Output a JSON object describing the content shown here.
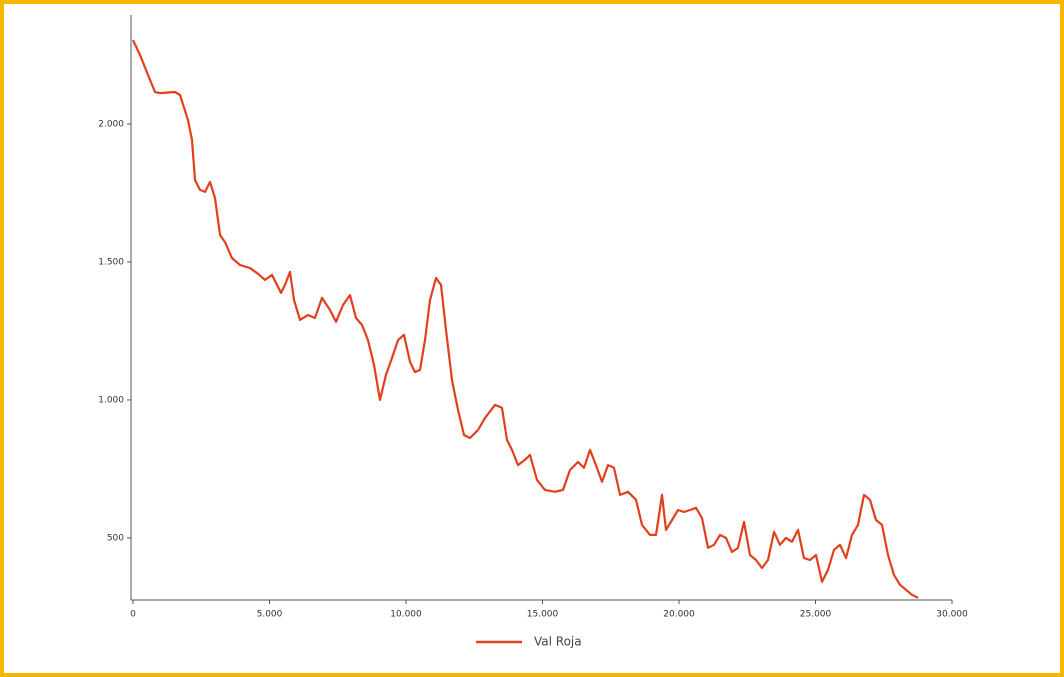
{
  "chart_data": {
    "type": "line",
    "x": [
      0,
      256,
      549,
      806,
      989,
      1538,
      1722,
      2015,
      2161,
      2271,
      2454,
      2637,
      2821,
      3004,
      3187,
      3370,
      3626,
      3919,
      4286,
      4579,
      4835,
      5092,
      5275,
      5421,
      5568,
      5751,
      5897,
      6117,
      6410,
      6667,
      6923,
      7216,
      7436,
      7692,
      7949,
      8168,
      8388,
      8608,
      8828,
      9048,
      9267,
      9487,
      9707,
      9927,
      10147,
      10330,
      10513,
      10696,
      10879,
      11099,
      11282,
      11465,
      11685,
      11905,
      12125,
      12344,
      12637,
      12894,
      13260,
      13516,
      13700,
      13883,
      14103,
      14359,
      14542,
      14799,
      15092,
      15458,
      15751,
      16007,
      16300,
      16520,
      16740,
      16960,
      17179,
      17399,
      17619,
      17839,
      18132,
      18425,
      18645,
      18938,
      19158,
      19377,
      19524,
      19744,
      19963,
      20183,
      20403,
      20623,
      20842,
      21062,
      21282,
      21502,
      21722,
      21941,
      22161,
      22381,
      22601,
      22821,
      23040,
      23260,
      23480,
      23700,
      23919,
      24139,
      24359,
      24579,
      24799,
      25018,
      25238,
      25458,
      25678,
      25897,
      26117,
      26337,
      26557,
      26777,
      26996,
      27216,
      27436,
      27656,
      27875,
      28095,
      28315,
      28535,
      28755
    ],
    "series": [
      {
        "name": "Val Roja",
        "color": "#e2401c",
        "values": [
          2304,
          2250,
          2178,
          2116,
          2112,
          2116,
          2105,
          2014,
          1942,
          1797,
          1761,
          1754,
          1790,
          1732,
          1598,
          1572,
          1514,
          1489,
          1478,
          1457,
          1435,
          1453,
          1417,
          1388,
          1417,
          1464,
          1362,
          1290,
          1308,
          1297,
          1370,
          1326,
          1283,
          1344,
          1380,
          1297,
          1272,
          1217,
          1127,
          1000,
          1091,
          1152,
          1217,
          1236,
          1138,
          1101,
          1109,
          1217,
          1362,
          1442,
          1417,
          1254,
          1072,
          964,
          873,
          862,
          891,
          935,
          982,
          971,
          855,
          819,
          764,
          783,
          801,
          710,
          674,
          667,
          674,
          746,
          775,
          754,
          819,
          764,
          703,
          764,
          754,
          656,
          667,
          638,
          547,
          511,
          511,
          656,
          529,
          565,
          601,
          594,
          601,
          609,
          572,
          464,
          475,
          511,
          500,
          449,
          464,
          558,
          438,
          420,
          391,
          420,
          522,
          475,
          500,
          486,
          529,
          427,
          420,
          438,
          341,
          384,
          457,
          475,
          427,
          511,
          547,
          656,
          638,
          565,
          547,
          438,
          366,
          330,
          312,
          294,
          283
        ]
      }
    ],
    "xlim": [
      0,
      30000
    ],
    "xticks": [
      0,
      {
        "value": 5000,
        "label": "5.000"
      },
      {
        "value": 10000,
        "label": "10.000"
      },
      {
        "value": 15000,
        "label": "15.000"
      },
      {
        "value": 20000,
        "label": "20.000"
      },
      {
        "value": 25000,
        "label": "25.000"
      },
      {
        "value": 30000,
        "label": "30.000"
      }
    ],
    "ylim": [
      275,
      2395
    ],
    "yticks": [
      {
        "value": 500,
        "label": "500"
      },
      {
        "value": 1000,
        "label": "1.000"
      },
      {
        "value": 1500,
        "label": "1.500"
      },
      {
        "value": 2000,
        "label": "2.000"
      }
    ],
    "grid": false,
    "legend": "bottom"
  }
}
